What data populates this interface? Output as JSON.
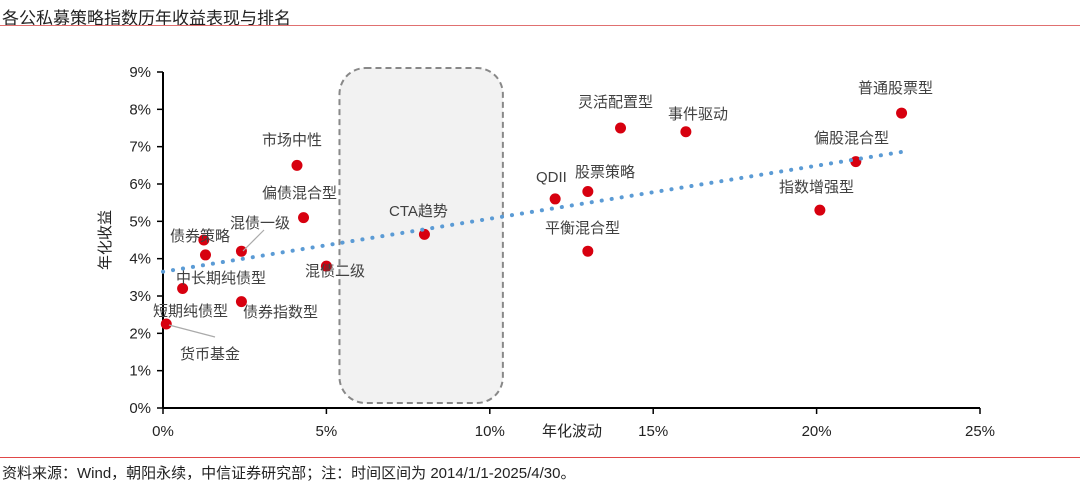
{
  "title": "各公私募策略指数历年收益表现与排名",
  "source": "资料来源：Wind，朝阳永续，中信证券研究部；注：时间区间为 2014/1/1-2025/4/30。",
  "chart_data": {
    "type": "scatter",
    "xlabel": "年化波动",
    "ylabel": "年化收益",
    "xlim": [
      0,
      25
    ],
    "ylim": [
      0,
      9
    ],
    "x_ticks": [
      "0%",
      "5%",
      "10%",
      "15%",
      "20%",
      "25%"
    ],
    "y_ticks": [
      "0%",
      "1%",
      "2%",
      "3%",
      "4%",
      "5%",
      "6%",
      "7%",
      "8%",
      "9%"
    ],
    "unit": "%",
    "point_color": "#d7000f",
    "trendline": {
      "style": "dotted",
      "color": "#5b9bd5",
      "intercept": 3.65,
      "slope": 0.142
    },
    "highlight_box": {
      "x_range": [
        5.4,
        10.4
      ],
      "label": "CTA趋势",
      "style": "dashed rounded",
      "fill": "#f2f2f2"
    },
    "points": [
      {
        "label": "普通股票型",
        "x": 22.6,
        "y": 7.9
      },
      {
        "label": "灵活配置型",
        "x": 14.0,
        "y": 7.5
      },
      {
        "label": "事件驱动",
        "x": 16.0,
        "y": 7.4
      },
      {
        "label": "偏股混合型",
        "x": 21.2,
        "y": 6.6
      },
      {
        "label": "指数增强型",
        "x": 20.1,
        "y": 5.3
      },
      {
        "label": "股票策略",
        "x": 13.0,
        "y": 5.8
      },
      {
        "label": "QDII",
        "x": 12.0,
        "y": 5.6
      },
      {
        "label": "平衡混合型",
        "x": 13.0,
        "y": 4.2
      },
      {
        "label": "CTA趋势",
        "x": 8.0,
        "y": 4.65
      },
      {
        "label": "市场中性",
        "x": 4.1,
        "y": 6.5
      },
      {
        "label": "偏债混合型",
        "x": 4.3,
        "y": 5.1
      },
      {
        "label": "混债一级",
        "x": 2.4,
        "y": 4.2
      },
      {
        "label": "混债二级",
        "x": 5.0,
        "y": 3.8
      },
      {
        "label": "债券策略",
        "x": 1.25,
        "y": 4.5
      },
      {
        "label": "中长期纯债型",
        "x": 1.3,
        "y": 4.1
      },
      {
        "label": "短期纯债型",
        "x": 0.6,
        "y": 3.2
      },
      {
        "label": "债券指数型",
        "x": 2.4,
        "y": 2.85
      },
      {
        "label": "货币基金",
        "x": 0.1,
        "y": 2.25
      }
    ]
  }
}
